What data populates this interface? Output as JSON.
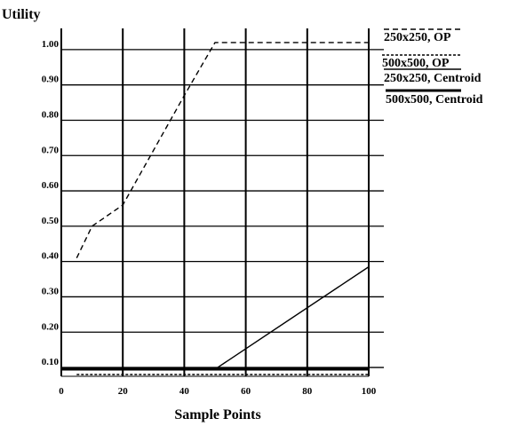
{
  "chart_data": {
    "type": "line",
    "title": "",
    "ylabel": "Utility",
    "xlabel": "Sample Points",
    "xlim": [
      0,
      100
    ],
    "ylim": [
      0.075,
      1.06
    ],
    "x_ticks": [
      0,
      20,
      40,
      60,
      80,
      100
    ],
    "x_tick_labels": [
      "0",
      "20",
      "40",
      "60",
      "80",
      "100"
    ],
    "y_ticks": [
      0.1,
      0.2,
      0.3,
      0.4,
      0.5,
      0.6,
      0.7,
      0.8,
      0.9,
      1.0
    ],
    "y_tick_labels": [
      "0.10",
      "0.20",
      "0.30",
      "0.40",
      "0.50",
      "0.60",
      "0.70",
      "0.80",
      "0.90",
      "1.00"
    ],
    "grid": true,
    "legend_position": "top-right",
    "series": [
      {
        "name": "250x250, OP",
        "style": "dashed",
        "color": "#000000",
        "x": [
          5,
          10,
          20,
          40,
          50,
          100
        ],
        "y": [
          0.41,
          0.5,
          0.56,
          0.87,
          1.02,
          1.02
        ]
      },
      {
        "name": "500x500, OP",
        "style": "dotted",
        "color": "#000000",
        "x": [
          5,
          10,
          100
        ],
        "y": [
          0.08,
          0.08,
          0.08
        ]
      },
      {
        "name": "250x250, Centroid",
        "style": "solid",
        "color": "#000000",
        "x": [
          0,
          50,
          100
        ],
        "y": [
          0.095,
          0.095,
          0.385
        ]
      },
      {
        "name": "500x500, Centroid",
        "style": "solid-thick",
        "color": "#000000",
        "x": [
          0,
          100
        ],
        "y": [
          0.095,
          0.095
        ]
      }
    ]
  }
}
